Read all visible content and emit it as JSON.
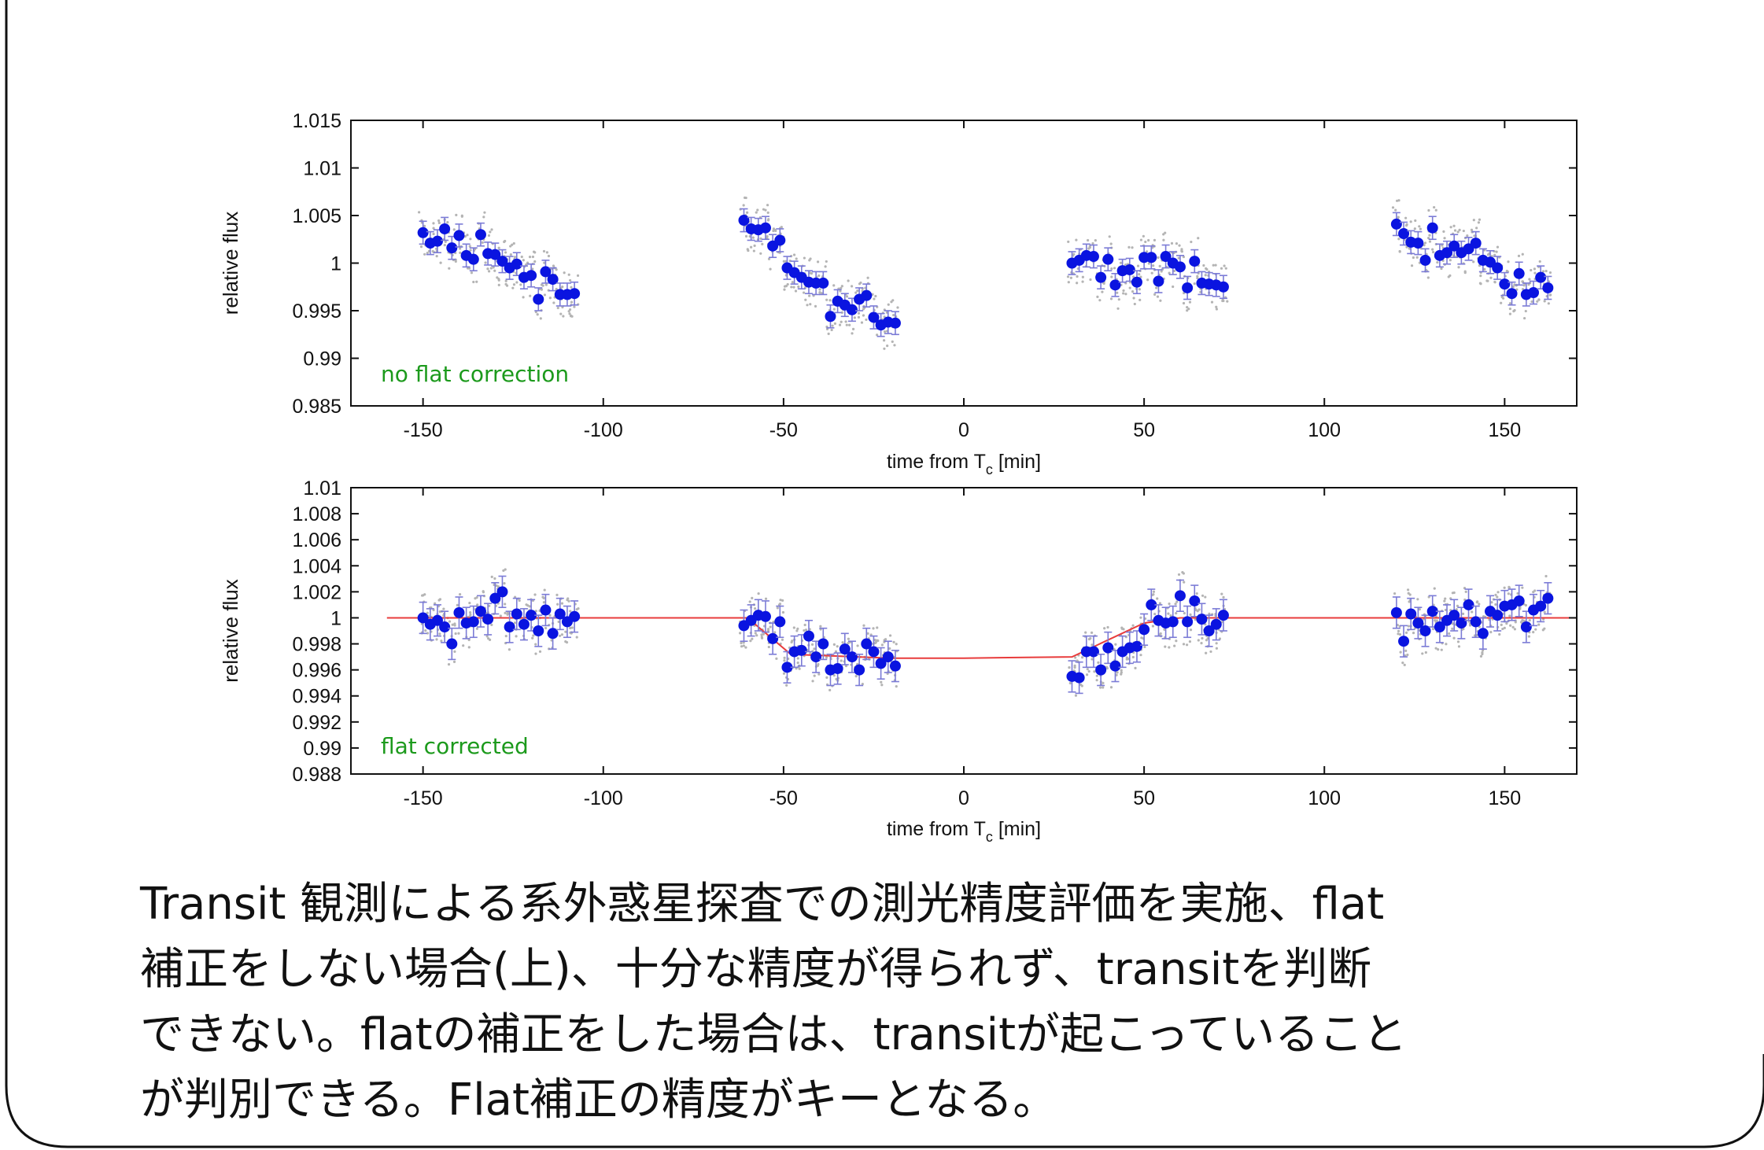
{
  "colors": {
    "points": "#0a14e0",
    "errorbars": "#7b7bd6",
    "raw_points": "#b4b4b4",
    "model": "#e83c3c",
    "annotation": "#1c9a1c",
    "frame": "#111111"
  },
  "chart_data": [
    {
      "type": "scatter",
      "xlabel": "time from T",
      "xlabel_sub": "c",
      "xlabel_unit": "[min]",
      "ylabel": "relative flux",
      "xlim": [
        -170,
        170
      ],
      "ylim": [
        0.985,
        1.015
      ],
      "x_ticks": [
        -150,
        -100,
        -50,
        0,
        50,
        100,
        150
      ],
      "x_tick_labels": [
        "-150",
        "-100",
        "-50",
        "0",
        "50",
        "100",
        "150"
      ],
      "y_ticks": [
        0.985,
        0.99,
        0.995,
        1,
        1.005,
        1.01,
        1.015
      ],
      "y_tick_labels": [
        "0.985",
        "0.99",
        "0.995",
        "1",
        "1.005",
        "1.01",
        "1.015"
      ],
      "grid": false,
      "annotation": "no flat correction",
      "series": [
        {
          "x": [
            -150,
            -148,
            -146,
            -144,
            -142,
            -140,
            -138,
            -136,
            -134,
            -132,
            -130,
            -128,
            -126,
            -124,
            -122,
            -120,
            -118,
            -116,
            -114,
            -112,
            -110,
            -108,
            -61,
            -59,
            -57,
            -55,
            -53,
            -51,
            -49,
            -47,
            -45,
            -43,
            -41,
            -39,
            -37,
            -35,
            -33,
            -31,
            -29,
            -27,
            -25,
            -23,
            -21,
            -19,
            30,
            32,
            34,
            36,
            38,
            40,
            42,
            44,
            46,
            48,
            50,
            52,
            54,
            56,
            58,
            60,
            62,
            64,
            66,
            68,
            70,
            72,
            120,
            122,
            124,
            126,
            128,
            130,
            132,
            134,
            136,
            138,
            140,
            142,
            144,
            146,
            148,
            150,
            152,
            154,
            156,
            158,
            160,
            162
          ],
          "y": [
            1.0032,
            1.0021,
            1.0023,
            1.0036,
            1.0016,
            1.0029,
            1.0008,
            1.0004,
            1.003,
            1.001,
            1.0009,
            1.0002,
            0.9995,
            0.9999,
            0.9985,
            0.9987,
            0.9962,
            0.9991,
            0.9983,
            0.9967,
            0.9967,
            0.9968,
            1.0045,
            1.0036,
            1.0035,
            1.0037,
            1.0018,
            1.0024,
            0.9995,
            0.999,
            0.9985,
            0.998,
            0.9979,
            0.9979,
            0.9944,
            0.996,
            0.9956,
            0.9951,
            0.9962,
            0.9966,
            0.9943,
            0.9935,
            0.9938,
            0.9937,
            1.0,
            1.0003,
            1.0008,
            1.0007,
            0.9985,
            1.0004,
            0.9977,
            0.9992,
            0.9993,
            0.998,
            1.0006,
            1.0006,
            0.9981,
            1.0007,
            1.0,
            0.9996,
            0.9974,
            1.0002,
            0.9979,
            0.9978,
            0.9977,
            0.9975,
            1.0041,
            1.0031,
            1.0022,
            1.0021,
            1.0003,
            1.0037,
            1.0008,
            1.0011,
            1.0018,
            1.0011,
            1.0015,
            1.0021,
            1.0003,
            1.0001,
            0.9995,
            0.9978,
            0.9968,
            0.9989,
            0.9967,
            0.9969,
            0.9985,
            0.9974
          ],
          "yerr": 0.0012
        }
      ]
    },
    {
      "type": "scatter",
      "xlabel": "time from T",
      "xlabel_sub": "c",
      "xlabel_unit": "[min]",
      "ylabel": "relative flux",
      "xlim": [
        -170,
        170
      ],
      "ylim": [
        0.988,
        1.01
      ],
      "x_ticks": [
        -150,
        -100,
        -50,
        0,
        50,
        100,
        150
      ],
      "x_tick_labels": [
        "-150",
        "-100",
        "-50",
        "0",
        "50",
        "100",
        "150"
      ],
      "y_ticks": [
        0.988,
        0.99,
        0.992,
        0.994,
        0.996,
        0.998,
        1,
        1.002,
        1.004,
        1.006,
        1.008,
        1.01
      ],
      "y_tick_labels": [
        "0.988",
        "0.99",
        "0.992",
        "0.994",
        "0.996",
        "0.998",
        "1",
        "1.002",
        "1.004",
        "1.006",
        "1.008",
        "1.01"
      ],
      "grid": false,
      "annotation": "flat corrected",
      "series": [
        {
          "x": [
            -150,
            -148,
            -146,
            -144,
            -142,
            -140,
            -138,
            -136,
            -134,
            -132,
            -130,
            -128,
            -126,
            -124,
            -122,
            -120,
            -118,
            -116,
            -114,
            -112,
            -110,
            -108,
            -61,
            -59,
            -57,
            -55,
            -53,
            -51,
            -49,
            -47,
            -45,
            -43,
            -41,
            -39,
            -37,
            -35,
            -33,
            -31,
            -29,
            -27,
            -25,
            -23,
            -21,
            -19,
            30,
            32,
            34,
            36,
            38,
            40,
            42,
            44,
            46,
            48,
            50,
            52,
            54,
            56,
            58,
            60,
            62,
            64,
            66,
            68,
            70,
            72,
            120,
            122,
            124,
            126,
            128,
            130,
            132,
            134,
            136,
            138,
            140,
            142,
            144,
            146,
            148,
            150,
            152,
            154,
            156,
            158,
            160,
            162
          ],
          "y": [
            1.0,
            0.9995,
            0.9998,
            0.9993,
            0.998,
            1.0004,
            0.9996,
            0.9997,
            1.0005,
            0.9999,
            1.0015,
            1.002,
            0.9993,
            1.0003,
            0.9995,
            1.0002,
            0.999,
            1.0006,
            0.9988,
            1.0003,
            0.9997,
            1.0001,
            0.9994,
            0.9998,
            1.0002,
            1.0001,
            0.9984,
            0.9997,
            0.9962,
            0.9974,
            0.9975,
            0.9986,
            0.997,
            0.998,
            0.996,
            0.9961,
            0.9976,
            0.997,
            0.996,
            0.998,
            0.9974,
            0.9965,
            0.997,
            0.9963,
            0.9955,
            0.9954,
            0.9974,
            0.9974,
            0.996,
            0.9977,
            0.9963,
            0.9974,
            0.9977,
            0.9978,
            0.9991,
            1.001,
            0.9998,
            0.9996,
            0.9997,
            1.0017,
            0.9997,
            1.0013,
            0.9999,
            0.999,
            0.9995,
            1.0002,
            1.0004,
            0.9982,
            1.0003,
            0.9996,
            0.999,
            1.0005,
            0.9993,
            0.9998,
            1.0002,
            0.9996,
            1.001,
            0.9997,
            0.9988,
            1.0005,
            1.0002,
            1.0009,
            1.001,
            1.0013,
            0.9993,
            1.0006,
            1.0009,
            1.0015
          ],
          "yerr": 0.0012
        },
        {
          "name": "",
          "type": "line",
          "x": [
            -160,
            -60,
            -48,
            -20,
            0,
            30,
            50,
            60,
            170
          ],
          "y": [
            1.0,
            1.0,
            0.9972,
            0.9969,
            0.9969,
            0.997,
            0.9996,
            1.0,
            1.0
          ]
        }
      ]
    }
  ],
  "caption": {
    "lines": [
      "Transit 観測による系外惑星探査での測光精度評価を実施、flat",
      "補正をしない場合(上)、十分な精度が得られず、transitを判断",
      "できない。flatの補正をした場合は、transitが起こっていること",
      "が判別できる。Flat補正の精度がキーとなる。"
    ]
  }
}
